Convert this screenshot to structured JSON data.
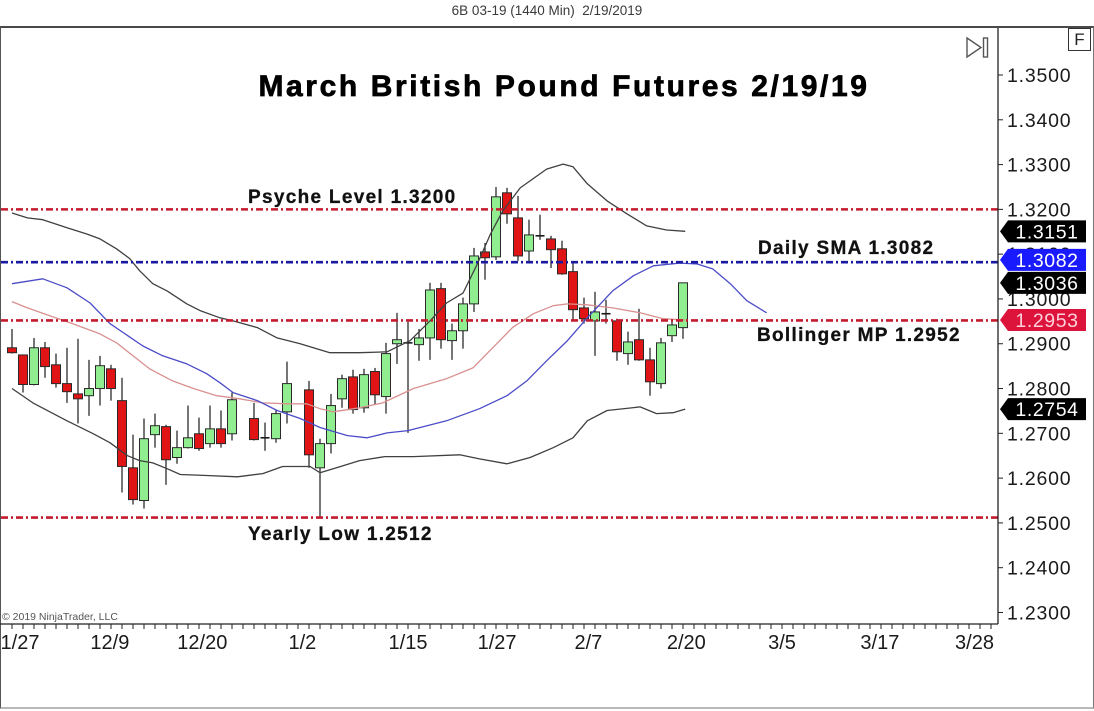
{
  "window": {
    "title": "6B 03-19 (1440 Min)  2/19/2019"
  },
  "toolbar": {
    "skip_icon": "skip-to-end-icon",
    "f_button": "F"
  },
  "copyright": "© 2019 NinjaTrader, LLC",
  "chart_data": {
    "type": "candlestick",
    "title": "March British Pound Futures 2/19/19",
    "subtitle": "6B 03-19 (1440 Min)  2/19/2019",
    "xlabel": "",
    "ylabel": "",
    "grid": false,
    "y_axis": {
      "min": 1.23,
      "max": 1.35,
      "ticks": [
        "1.3500",
        "1.3400",
        "1.3300",
        "1.3200",
        "1.3100",
        "1.3000",
        "1.2900",
        "1.2800",
        "1.2700",
        "1.2600",
        "1.2500",
        "1.2400",
        "1.2300"
      ]
    },
    "x_axis": {
      "slots_visible": 90,
      "labels": [
        {
          "text": "1/27",
          "slot": 0.73
        },
        {
          "text": "12/9",
          "slot": 8.9
        },
        {
          "text": "12/20",
          "slot": 17.3
        },
        {
          "text": "1/2",
          "slot": 26.4
        },
        {
          "text": "1/15",
          "slot": 36
        },
        {
          "text": "1/27",
          "slot": 44.1
        },
        {
          "text": "2/7",
          "slot": 52.4
        },
        {
          "text": "2/20",
          "slot": 61.3
        },
        {
          "text": "3/5",
          "slot": 70
        },
        {
          "text": "3/17",
          "slot": 78.9
        },
        {
          "text": "3/28",
          "slot": 87.5
        }
      ]
    },
    "candle_format": [
      "open",
      "high",
      "low",
      "close"
    ],
    "candles": [
      [
        1.2891,
        1.2933,
        1.2878,
        1.288
      ],
      [
        1.2875,
        1.2876,
        1.2791,
        1.2809
      ],
      [
        1.2809,
        1.2913,
        1.2807,
        1.2891
      ],
      [
        1.2891,
        1.2904,
        1.2824,
        1.2849
      ],
      [
        1.2853,
        1.2878,
        1.2802,
        1.2811
      ],
      [
        1.2811,
        1.2891,
        1.2768,
        1.2793
      ],
      [
        1.2788,
        1.2911,
        1.2722,
        1.2777
      ],
      [
        1.2784,
        1.2864,
        1.2739,
        1.28
      ],
      [
        1.28,
        1.2873,
        1.2762,
        1.2851
      ],
      [
        1.2844,
        1.2853,
        1.2773,
        1.28
      ],
      [
        1.2773,
        1.2824,
        1.2568,
        1.2626
      ],
      [
        1.2623,
        1.2697,
        1.2541,
        1.2552
      ],
      [
        1.255,
        1.2733,
        1.2532,
        1.2688
      ],
      [
        1.2697,
        1.2744,
        1.2668,
        1.2717
      ],
      [
        1.2715,
        1.2719,
        1.2585,
        1.2641
      ],
      [
        1.2646,
        1.2706,
        1.2632,
        1.2668
      ],
      [
        1.2668,
        1.2762,
        1.2666,
        1.269
      ],
      [
        1.2699,
        1.2735,
        1.2661,
        1.2666
      ],
      [
        1.2677,
        1.2762,
        1.2668,
        1.271
      ],
      [
        1.271,
        1.2751,
        1.2668,
        1.2677
      ],
      [
        1.2699,
        1.2791,
        1.2684,
        1.2775
      ],
      null,
      [
        1.2733,
        1.2768,
        1.2684,
        1.2686
      ],
      [
        1.2688,
        1.2724,
        1.2661,
        1.269
      ],
      [
        1.2688,
        1.2751,
        1.2679,
        1.2744
      ],
      [
        1.2748,
        1.286,
        1.2722,
        1.2811
      ],
      null,
      [
        1.2797,
        1.2817,
        1.2623,
        1.2652
      ],
      [
        1.2623,
        1.2688,
        1.2512,
        1.2677
      ],
      [
        1.2677,
        1.2788,
        1.2655,
        1.2762
      ],
      [
        1.2777,
        1.2831,
        1.2757,
        1.2822
      ],
      [
        1.2826,
        1.2842,
        1.2744,
        1.2753
      ],
      [
        1.2757,
        1.2844,
        1.2746,
        1.2831
      ],
      [
        1.2838,
        1.2846,
        1.2764,
        1.2786
      ],
      [
        1.2782,
        1.2902,
        1.2744,
        1.2878
      ],
      [
        1.29,
        1.2969,
        1.2855,
        1.2909
      ],
      [
        1.2902,
        1.2949,
        1.2701,
        1.2902
      ],
      [
        1.2898,
        1.2933,
        1.2862,
        1.2913
      ],
      [
        1.2913,
        1.3036,
        1.2864,
        1.302
      ],
      [
        1.3023,
        1.3036,
        1.2889,
        1.2909
      ],
      [
        1.2907,
        1.2945,
        1.2864,
        1.2929
      ],
      [
        1.2929,
        1.3003,
        1.2889,
        1.2989
      ],
      [
        1.2989,
        1.3114,
        1.2971,
        1.3096
      ],
      [
        1.3105,
        1.3125,
        1.3043,
        1.3092
      ],
      [
        1.3094,
        1.325,
        1.3087,
        1.3228
      ],
      [
        1.3237,
        1.3248,
        1.3168,
        1.319
      ],
      [
        1.3181,
        1.323,
        1.3085,
        1.3096
      ],
      [
        1.3107,
        1.3177,
        1.3081,
        1.3143
      ],
      [
        1.3141,
        1.3188,
        1.3132,
        1.3139
      ],
      [
        1.3134,
        1.3141,
        1.3069,
        1.311
      ],
      [
        1.3112,
        1.313,
        1.3054,
        1.3056
      ],
      [
        1.3061,
        1.3083,
        1.2951,
        1.2976
      ],
      [
        1.298,
        1.3003,
        1.2945,
        1.2956
      ],
      [
        1.2951,
        1.3016,
        1.2873,
        1.2971
      ],
      [
        1.2967,
        1.2998,
        1.2945,
        1.2967
      ],
      [
        1.2951,
        1.2956,
        1.2862,
        1.2882
      ],
      [
        1.2878,
        1.2927,
        1.2853,
        1.2904
      ],
      [
        1.2909,
        1.2978,
        1.2862,
        1.2864
      ],
      [
        1.2864,
        1.2891,
        1.2784,
        1.2815
      ],
      [
        1.2811,
        1.2913,
        1.28,
        1.2902
      ],
      [
        1.2918,
        1.2953,
        1.2904,
        1.2942
      ],
      [
        1.2936,
        1.3036,
        1.2911,
        1.3036
      ]
    ],
    "series": [
      {
        "id": "bollinger-upper",
        "name": "Bollinger Upper",
        "color": "#404040",
        "points": [
          [
            0,
            1.3192
          ],
          [
            1.4,
            1.3181
          ],
          [
            2.8,
            1.3177
          ],
          [
            5,
            1.3159
          ],
          [
            6.8,
            1.3145
          ],
          [
            8,
            1.3134
          ],
          [
            9.5,
            1.3112
          ],
          [
            10.7,
            1.309
          ],
          [
            11.6,
            1.3063
          ],
          [
            12.8,
            1.3034
          ],
          [
            14.1,
            1.3018
          ],
          [
            15.9,
            1.2989
          ],
          [
            17.1,
            1.2974
          ],
          [
            18.9,
            1.2958
          ],
          [
            20.1,
            1.2951
          ],
          [
            22.3,
            1.2936
          ],
          [
            24.1,
            1.2913
          ],
          [
            26.2,
            1.29
          ],
          [
            28.9,
            1.288
          ],
          [
            31.6,
            1.288
          ],
          [
            34.1,
            1.2882
          ],
          [
            36.2,
            1.2907
          ],
          [
            38,
            1.2951
          ],
          [
            39.5,
            1.2991
          ],
          [
            41,
            1.3013
          ],
          [
            42.3,
            1.3078
          ],
          [
            43.5,
            1.3145
          ],
          [
            44.6,
            1.3196
          ],
          [
            46.2,
            1.3248
          ],
          [
            48.6,
            1.329
          ],
          [
            50.1,
            1.3301
          ],
          [
            51,
            1.3295
          ],
          [
            52.3,
            1.3257
          ],
          [
            54.1,
            1.3219
          ],
          [
            55.9,
            1.319
          ],
          [
            57.7,
            1.3163
          ],
          [
            59.5,
            1.3154
          ],
          [
            61.2,
            1.3151
          ]
        ]
      },
      {
        "id": "bollinger-lower",
        "name": "Bollinger Lower",
        "color": "#404040",
        "points": [
          [
            0,
            1.28
          ],
          [
            1.9,
            1.2768
          ],
          [
            5,
            1.2728
          ],
          [
            7.4,
            1.2699
          ],
          [
            8.9,
            1.2679
          ],
          [
            10.5,
            1.265
          ],
          [
            11.6,
            1.2639
          ],
          [
            12.8,
            1.2634
          ],
          [
            14.1,
            1.2621
          ],
          [
            15.3,
            1.2608
          ],
          [
            17.4,
            1.2606
          ],
          [
            20.5,
            1.2603
          ],
          [
            22.8,
            1.261
          ],
          [
            24.6,
            1.2626
          ],
          [
            27.1,
            1.2626
          ],
          [
            28,
            1.2612
          ],
          [
            29.5,
            1.2623
          ],
          [
            31.6,
            1.2639
          ],
          [
            33.9,
            1.2648
          ],
          [
            36.5,
            1.2648
          ],
          [
            40.7,
            1.2652
          ],
          [
            42.5,
            1.2643
          ],
          [
            45,
            1.2632
          ],
          [
            47.1,
            1.2646
          ],
          [
            49.2,
            1.2668
          ],
          [
            51,
            1.269
          ],
          [
            52.3,
            1.2728
          ],
          [
            54.1,
            1.2751
          ],
          [
            57.1,
            1.2759
          ],
          [
            58.6,
            1.2744
          ],
          [
            60.1,
            1.2746
          ],
          [
            61.2,
            1.2754
          ]
        ]
      },
      {
        "id": "bollinger-middle",
        "name": "Bollinger Midpoint",
        "color": "#d99090",
        "points": [
          [
            0,
            1.2994
          ],
          [
            1.4,
            1.298
          ],
          [
            3.5,
            1.2962
          ],
          [
            5.5,
            1.2945
          ],
          [
            8,
            1.2922
          ],
          [
            9.5,
            1.2902
          ],
          [
            11,
            1.2873
          ],
          [
            12.5,
            1.2844
          ],
          [
            14.6,
            1.2817
          ],
          [
            16.5,
            1.28
          ],
          [
            18.6,
            1.2784
          ],
          [
            20.7,
            1.2777
          ],
          [
            22.8,
            1.2768
          ],
          [
            25,
            1.2766
          ],
          [
            26.8,
            1.2766
          ],
          [
            28,
            1.2755
          ],
          [
            29.2,
            1.2748
          ],
          [
            31.6,
            1.2757
          ],
          [
            33.7,
            1.2768
          ],
          [
            36.5,
            1.28
          ],
          [
            39.5,
            1.2822
          ],
          [
            41.9,
            1.2846
          ],
          [
            43.7,
            1.2891
          ],
          [
            45.5,
            1.2936
          ],
          [
            47.4,
            1.2967
          ],
          [
            49.2,
            1.2985
          ],
          [
            50.5,
            1.2989
          ],
          [
            52.3,
            1.2987
          ],
          [
            54.6,
            1.298
          ],
          [
            57.1,
            1.2969
          ],
          [
            59.2,
            1.2956
          ],
          [
            61.2,
            1.2953
          ]
        ]
      },
      {
        "id": "sma",
        "name": "Daily SMA (displaced)",
        "color": "#4b4bc8",
        "points": [
          [
            0,
            1.3034
          ],
          [
            2.8,
            1.3045
          ],
          [
            5,
            1.3025
          ],
          [
            7.1,
            1.2991
          ],
          [
            8.9,
            1.2945
          ],
          [
            10.1,
            1.2925
          ],
          [
            11.9,
            1.2895
          ],
          [
            13.7,
            1.2873
          ],
          [
            15.9,
            1.2855
          ],
          [
            17.7,
            1.2833
          ],
          [
            18.9,
            1.2813
          ],
          [
            20.1,
            1.2791
          ],
          [
            22.3,
            1.2773
          ],
          [
            24.1,
            1.2751
          ],
          [
            26.2,
            1.2733
          ],
          [
            28,
            1.2713
          ],
          [
            30.5,
            1.2695
          ],
          [
            32.3,
            1.269
          ],
          [
            34.1,
            1.2701
          ],
          [
            36,
            1.2706
          ],
          [
            39.5,
            1.2728
          ],
          [
            42.5,
            1.2755
          ],
          [
            45,
            1.2784
          ],
          [
            46.8,
            1.2817
          ],
          [
            48.6,
            1.2862
          ],
          [
            50.5,
            1.2907
          ],
          [
            52.3,
            1.2958
          ],
          [
            54.6,
            1.3018
          ],
          [
            56.5,
            1.3052
          ],
          [
            58.3,
            1.3074
          ],
          [
            60.7,
            1.308
          ],
          [
            62.3,
            1.3078
          ],
          [
            63.7,
            1.3067
          ],
          [
            65.3,
            1.3034
          ],
          [
            66.8,
            1.2996
          ],
          [
            68.6,
            1.2969
          ]
        ]
      }
    ],
    "levels": [
      {
        "label": "Psyche Level 1.3200",
        "price": 1.32,
        "color": "#c41a2e"
      },
      {
        "label": "Daily SMA 1.3082",
        "price": 1.3082,
        "color": "#1a1aa0"
      },
      {
        "label": "Bollinger MP 1.2952",
        "price": 1.2952,
        "color": "#c41a2e"
      },
      {
        "label": "Yearly Low 1.2512",
        "price": 1.2512,
        "color": "#c41a2e"
      }
    ],
    "price_markers": [
      {
        "value": "1.3151",
        "price": 1.3151,
        "bg": "#000000",
        "fg": "#ffffff"
      },
      {
        "value": "1.3082",
        "price": 1.3082,
        "bg": "#1a1aff",
        "fg": "#ffffff"
      },
      {
        "value": "1.3036",
        "price": 1.3036,
        "bg": "#000000",
        "fg": "#ffffff"
      },
      {
        "value": "1.2953",
        "price": 1.2953,
        "bg": "#dc143c",
        "fg": "#ffd0da"
      },
      {
        "value": "1.2754",
        "price": 1.2754,
        "bg": "#000000",
        "fg": "#ffffff"
      }
    ],
    "colors": {
      "up": "#90ee90",
      "down": "#e01414",
      "outline": "#2a2a2a",
      "wick": "#1a1a1a",
      "axis": "#222222"
    }
  }
}
